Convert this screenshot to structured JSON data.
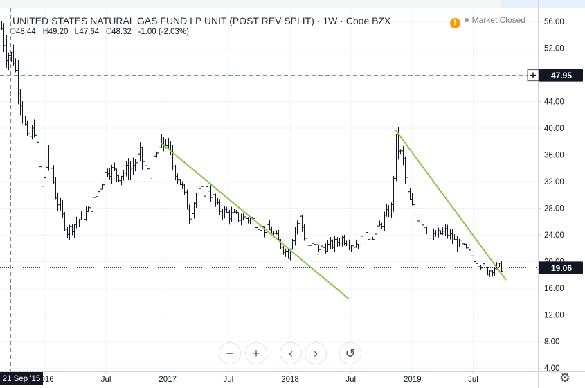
{
  "header": {
    "title": "UNITED STATES NATURAL GAS FUND LP UNIT (POST REV SPLIT) · 1W · Cboe BZX",
    "ohlc": [
      {
        "key": "O",
        "value": "48.44"
      },
      {
        "key": "H",
        "value": "49.20"
      },
      {
        "key": "L",
        "value": "47.64"
      },
      {
        "key": "C",
        "value": "48.32"
      },
      {
        "key": "",
        "value": "-1.00 (-2.03%)"
      }
    ],
    "market_status": "Market Closed",
    "market_icon": "!"
  },
  "toolbar": {
    "zoom_out": "−",
    "zoom_in": "+",
    "scroll_left": "‹",
    "scroll_right": "›",
    "reset": "↺",
    "settings": "⚙"
  },
  "crosshair": {
    "date_label": "21 Sep '15",
    "price_label": "47.95"
  },
  "colors": {
    "bar": "#131722",
    "trendline": "#8bc34a",
    "crosshair": "#758696",
    "axis_text": "#131722",
    "orange_badge": "#ff9800"
  },
  "chart_data": {
    "type": "ohlc",
    "title": "UNITED STATES NATURAL GAS FUND LP UNIT (POST REV SPLIT)",
    "interval": "1W",
    "exchange": "Cboe BZX",
    "y_ticks": [
      4,
      8,
      12,
      16,
      20,
      24,
      28,
      32,
      36,
      40,
      44,
      48,
      52,
      56
    ],
    "y_tick_labels": [
      "4.00",
      "8.00",
      "12.00",
      "16.00",
      "20.00",
      "24.00",
      "28.00",
      "32.00",
      "36.00",
      "40.00",
      "44.00",
      "48.00",
      "52.00",
      "56.00"
    ],
    "ylim": [
      3.5,
      58
    ],
    "x_ticks": [
      {
        "date": "2016-01-01",
        "label": "2016"
      },
      {
        "date": "2016-07-01",
        "label": "Jul"
      },
      {
        "date": "2017-01-01",
        "label": "2017"
      },
      {
        "date": "2017-07-01",
        "label": "Jul"
      },
      {
        "date": "2018-01-01",
        "label": "2018"
      },
      {
        "date": "2018-07-01",
        "label": "Jul"
      },
      {
        "date": "2019-01-01",
        "label": "2019"
      },
      {
        "date": "2019-07-01",
        "label": "Jul"
      }
    ],
    "xlim": [
      "2015-08-20",
      "2020-01-10"
    ],
    "last_price": 19.06,
    "last_price_label": "19.06",
    "crosshair_price": 47.95,
    "crosshair_date": "2015-09-21",
    "close_path": [
      [
        "2015-08-24",
        55.0
      ],
      [
        "2015-09-07",
        51.5
      ],
      [
        "2015-09-28",
        50.5
      ],
      [
        "2015-10-19",
        44.5
      ],
      [
        "2015-11-09",
        38.0
      ],
      [
        "2015-11-30",
        40.0
      ],
      [
        "2015-12-21",
        31.0
      ],
      [
        "2016-01-11",
        36.0
      ],
      [
        "2016-02-01",
        30.0
      ],
      [
        "2016-03-07",
        24.5
      ],
      [
        "2016-04-04",
        26.0
      ],
      [
        "2016-05-09",
        27.5
      ],
      [
        "2016-06-06",
        30.5
      ],
      [
        "2016-07-04",
        34.0
      ],
      [
        "2016-08-08",
        33.0
      ],
      [
        "2016-09-12",
        34.0
      ],
      [
        "2016-10-10",
        36.0
      ],
      [
        "2016-11-07",
        32.5
      ],
      [
        "2016-12-05",
        37.0
      ],
      [
        "2016-12-26",
        38.0
      ],
      [
        "2017-01-16",
        34.5
      ],
      [
        "2017-02-13",
        31.0
      ],
      [
        "2017-03-06",
        27.0
      ],
      [
        "2017-03-27",
        30.0
      ],
      [
        "2017-05-01",
        31.0
      ],
      [
        "2017-05-29",
        28.0
      ],
      [
        "2017-07-03",
        27.0
      ],
      [
        "2017-08-07",
        26.5
      ],
      [
        "2017-09-04",
        26.5
      ],
      [
        "2017-10-09",
        25.0
      ],
      [
        "2017-11-06",
        24.5
      ],
      [
        "2017-12-04",
        22.5
      ],
      [
        "2017-12-25",
        21.0
      ],
      [
        "2018-01-15",
        25.0
      ],
      [
        "2018-01-29",
        26.5
      ],
      [
        "2018-02-19",
        22.5
      ],
      [
        "2018-04-02",
        22.0
      ],
      [
        "2018-05-07",
        22.5
      ],
      [
        "2018-06-04",
        23.5
      ],
      [
        "2018-07-09",
        22.5
      ],
      [
        "2018-08-06",
        23.5
      ],
      [
        "2018-09-10",
        24.0
      ],
      [
        "2018-10-08",
        26.5
      ],
      [
        "2018-10-29",
        28.0
      ],
      [
        "2018-11-12",
        38.0
      ],
      [
        "2018-12-03",
        35.0
      ],
      [
        "2018-12-17",
        30.0
      ],
      [
        "2019-01-07",
        27.0
      ],
      [
        "2019-01-28",
        26.0
      ],
      [
        "2019-02-25",
        23.5
      ],
      [
        "2019-03-18",
        24.0
      ],
      [
        "2019-04-08",
        24.5
      ],
      [
        "2019-05-06",
        23.0
      ],
      [
        "2019-06-03",
        22.0
      ],
      [
        "2019-07-01",
        20.5
      ],
      [
        "2019-07-22",
        19.5
      ],
      [
        "2019-08-12",
        18.5
      ],
      [
        "2019-09-09",
        19.3
      ],
      [
        "2019-09-23",
        19.06
      ]
    ],
    "trendlines": [
      {
        "start": [
          "2016-12-12",
          37.8
        ],
        "end": [
          "2018-06-25",
          14.4
        ]
      },
      {
        "start": [
          "2018-11-12",
          39.7
        ],
        "end": [
          "2019-10-07",
          17.2
        ]
      }
    ]
  }
}
